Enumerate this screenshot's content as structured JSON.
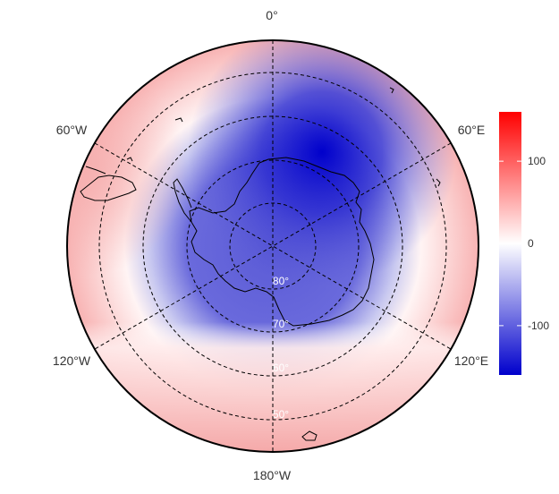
{
  "map": {
    "projection": "south-polar-stereographic",
    "colors": {
      "negative": "#0000cc",
      "neutral": "#ffffff",
      "positive": "#ff0000",
      "coastline": "#000000",
      "graticule": "#000000"
    },
    "longitude_labels": {
      "top": "0°",
      "upper_left": "60°W",
      "upper_right": "60°E",
      "lower_left": "120°W",
      "lower_right": "120°E",
      "bottom": "180°W"
    },
    "latitude_labels": {
      "lat80": "80°",
      "lat70": "70°",
      "lat60": "60°",
      "lat50": "50°"
    }
  },
  "colorbar": {
    "min": -160,
    "max": 160,
    "ticks": [
      {
        "label": "100",
        "value": 100
      },
      {
        "label": "0",
        "value": 0
      },
      {
        "label": "-100",
        "value": -100
      }
    ]
  }
}
